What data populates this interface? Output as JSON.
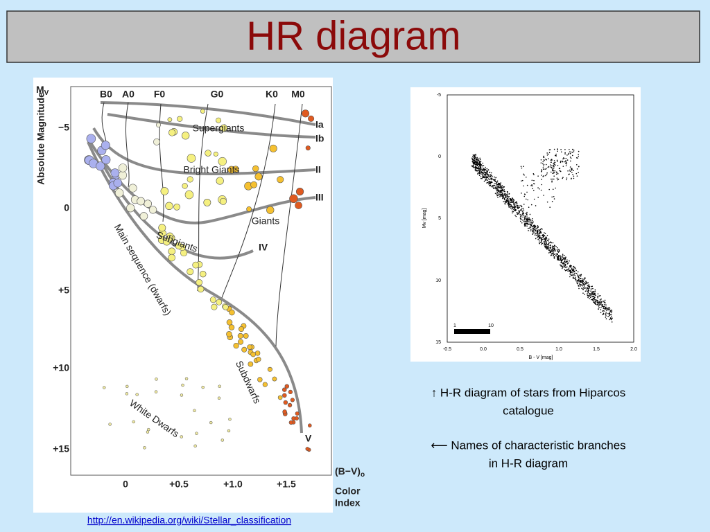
{
  "title": "HR diagram",
  "left_diagram": {
    "y_axis_symbol": "M",
    "y_axis_symbol_sub": "V",
    "y_axis_label": "Absolute Magnitude",
    "yticks": [
      "−5",
      "0",
      "+5",
      "+10",
      "+15"
    ],
    "spectral_classes": [
      "B0",
      "A0",
      "F0",
      "G0",
      "K0",
      "M0"
    ],
    "xticks": [
      "0",
      "+0.5",
      "+1.0",
      "+1.5"
    ],
    "x_axis_symbol": "(B−V)",
    "x_axis_symbol_sub": "o",
    "x_axis_caption": [
      "Color",
      "Index"
    ],
    "branches": [
      "Supergiants",
      "Bright Giants",
      "Giants",
      "Subgiants",
      "Main sequence (dwarfs)",
      "Subdwarfs",
      "White Dwarfs"
    ],
    "luminosity_classes": [
      "Ia",
      "Ib",
      "II",
      "III",
      "IV",
      "V"
    ]
  },
  "right_diagram": {
    "y_axis_label": "Mv [mag]",
    "x_axis_label": "B - V [mag]",
    "yticks": [
      "-5",
      "0",
      "5",
      "10",
      "15"
    ],
    "xticks": [
      "-0.5",
      "0.0",
      "0.5",
      "1.0",
      "1.5",
      "2.0"
    ],
    "scale_labels": [
      "1",
      "10"
    ]
  },
  "captions": [
    [
      "↑ H-R diagram of stars from Hiparcos",
      "catalogue"
    ],
    [
      "⟵ Names of characteristic branches",
      "in  H-R diagram"
    ]
  ],
  "link": "http://en.wikipedia.org/wiki/Stellar_classification"
}
